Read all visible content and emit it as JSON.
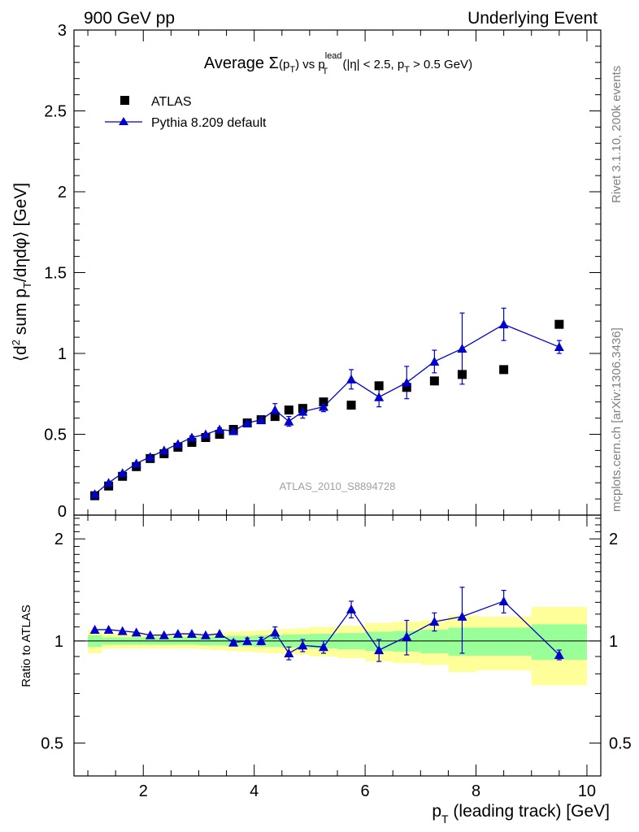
{
  "header": {
    "left": "900 GeV pp",
    "right": "Underlying Event",
    "side_rivet": "Rivet 3.1.10,  200k events",
    "side_mcplots": "mcplots.cern.ch [arXiv:1306.3436]",
    "watermark": "ATLAS_2010_S8894728"
  },
  "chart_data": [
    {
      "type": "scatter",
      "title_parts": {
        "a": "Average ",
        "sigma": "Σ",
        "b": "(p",
        "b_sub": "T",
        "c": ")  vs p",
        "c_sup": "lead",
        "c_sub": "T",
        "d": " (|η| < 2.5, p",
        "d_sub": "T",
        "e": " > 0.5 GeV)"
      },
      "ylabel_parts": {
        "a": "⟨d",
        "sup": "2",
        "b": " sum p",
        "sub": "T",
        "c": "/dηdφ⟩ [GeV]"
      },
      "ylim": [
        0,
        3
      ],
      "xlim": [
        0.75,
        10.25
      ],
      "yticks": [
        {
          "v": 0,
          "label": "0"
        },
        {
          "v": 0.5,
          "label": "0.5"
        },
        {
          "v": 1,
          "label": "1"
        },
        {
          "v": 1.5,
          "label": "1.5"
        },
        {
          "v": 2,
          "label": "2"
        },
        {
          "v": 2.5,
          "label": "2.5"
        },
        {
          "v": 3,
          "label": "3"
        }
      ],
      "legend": [
        {
          "name": "ATLAS",
          "marker": "square",
          "color": "#000000"
        },
        {
          "name": "Pythia 8.209 default",
          "marker": "triangle",
          "color": "#0000cc"
        }
      ],
      "series": [
        {
          "name": "ATLAS",
          "color": "#000000",
          "x": [
            1.125,
            1.375,
            1.625,
            1.875,
            2.125,
            2.375,
            2.625,
            2.875,
            3.125,
            3.375,
            3.625,
            3.875,
            4.125,
            4.375,
            4.625,
            4.875,
            5.25,
            5.75,
            6.25,
            6.75,
            7.25,
            7.75,
            8.5,
            9.5
          ],
          "y": [
            0.12,
            0.18,
            0.24,
            0.3,
            0.35,
            0.38,
            0.42,
            0.45,
            0.48,
            0.5,
            0.53,
            0.57,
            0.59,
            0.61,
            0.65,
            0.66,
            0.7,
            0.68,
            0.8,
            0.79,
            0.83,
            0.87,
            0.9,
            1.18
          ]
        },
        {
          "name": "Pythia 8.209 default",
          "color": "#0000cc",
          "x": [
            1.125,
            1.375,
            1.625,
            1.875,
            2.125,
            2.375,
            2.625,
            2.875,
            3.125,
            3.375,
            3.625,
            3.875,
            4.125,
            4.375,
            4.625,
            4.875,
            5.25,
            5.75,
            6.25,
            6.75,
            7.25,
            7.75,
            8.5,
            9.5
          ],
          "y": [
            0.13,
            0.2,
            0.26,
            0.32,
            0.36,
            0.4,
            0.44,
            0.48,
            0.5,
            0.53,
            0.52,
            0.57,
            0.59,
            0.65,
            0.58,
            0.64,
            0.67,
            0.84,
            0.73,
            0.82,
            0.95,
            1.03,
            1.18,
            1.04
          ],
          "yerr": [
            0,
            0,
            0,
            0,
            0,
            0,
            0,
            0.01,
            0,
            0.01,
            0,
            0.02,
            0.02,
            0.04,
            0.03,
            0.04,
            0.03,
            0.06,
            0.06,
            0.1,
            0.07,
            0.22,
            0.1,
            0.04
          ]
        }
      ]
    },
    {
      "type": "ratio",
      "ylabel": "Ratio to ATLAS",
      "ylim": [
        0.4,
        2.35
      ],
      "xlim": [
        0.75,
        10.25
      ],
      "log_y": true,
      "yticks": [
        {
          "v": 0.5,
          "label": "0.5"
        },
        {
          "v": 1,
          "label": "1"
        },
        {
          "v": 2,
          "label": "2"
        }
      ],
      "xticks": [
        {
          "v": 2,
          "label": "2"
        },
        {
          "v": 4,
          "label": "4"
        },
        {
          "v": 6,
          "label": "6"
        },
        {
          "v": 8,
          "label": "8"
        },
        {
          "v": 10,
          "label": "10"
        }
      ],
      "xlabel_parts": {
        "a": "p",
        "sub": "T",
        "b": " (leading track) [GeV]"
      },
      "bins": [
        {
          "lo": 1.0,
          "hi": 1.25,
          "y1": 0.92,
          "y1h": 1.08,
          "y2": 0.96,
          "y2h": 1.04
        },
        {
          "lo": 1.25,
          "hi": 1.5,
          "y1": 0.95,
          "y1h": 1.05,
          "y2": 0.975,
          "y2h": 1.025
        },
        {
          "lo": 1.5,
          "hi": 1.75,
          "y1": 0.95,
          "y1h": 1.05,
          "y2": 0.975,
          "y2h": 1.025
        },
        {
          "lo": 1.75,
          "hi": 2.0,
          "y1": 0.95,
          "y1h": 1.05,
          "y2": 0.975,
          "y2h": 1.025
        },
        {
          "lo": 2.0,
          "hi": 2.25,
          "y1": 0.95,
          "y1h": 1.05,
          "y2": 0.975,
          "y2h": 1.025
        },
        {
          "lo": 2.25,
          "hi": 2.5,
          "y1": 0.95,
          "y1h": 1.05,
          "y2": 0.975,
          "y2h": 1.025
        },
        {
          "lo": 2.5,
          "hi": 2.75,
          "y1": 0.95,
          "y1h": 1.05,
          "y2": 0.975,
          "y2h": 1.025
        },
        {
          "lo": 2.75,
          "hi": 3.0,
          "y1": 0.95,
          "y1h": 1.05,
          "y2": 0.975,
          "y2h": 1.025
        },
        {
          "lo": 3.0,
          "hi": 3.25,
          "y1": 0.945,
          "y1h": 1.055,
          "y2": 0.97,
          "y2h": 1.03
        },
        {
          "lo": 3.25,
          "hi": 3.5,
          "y1": 0.94,
          "y1h": 1.06,
          "y2": 0.97,
          "y2h": 1.03
        },
        {
          "lo": 3.5,
          "hi": 3.75,
          "y1": 0.935,
          "y1h": 1.065,
          "y2": 0.965,
          "y2h": 1.035
        },
        {
          "lo": 3.75,
          "hi": 4.0,
          "y1": 0.93,
          "y1h": 1.07,
          "y2": 0.965,
          "y2h": 1.035
        },
        {
          "lo": 4.0,
          "hi": 4.25,
          "y1": 0.925,
          "y1h": 1.075,
          "y2": 0.96,
          "y2h": 1.04
        },
        {
          "lo": 4.25,
          "hi": 4.5,
          "y1": 0.92,
          "y1h": 1.08,
          "y2": 0.96,
          "y2h": 1.04
        },
        {
          "lo": 4.5,
          "hi": 4.75,
          "y1": 0.915,
          "y1h": 1.085,
          "y2": 0.955,
          "y2h": 1.045
        },
        {
          "lo": 4.75,
          "hi": 5.0,
          "y1": 0.91,
          "y1h": 1.09,
          "y2": 0.955,
          "y2h": 1.045
        },
        {
          "lo": 5.0,
          "hi": 5.5,
          "y1": 0.9,
          "y1h": 1.1,
          "y2": 0.95,
          "y2h": 1.05
        },
        {
          "lo": 5.5,
          "hi": 6.0,
          "y1": 0.89,
          "y1h": 1.11,
          "y2": 0.945,
          "y2h": 1.055
        },
        {
          "lo": 6.0,
          "hi": 6.5,
          "y1": 0.87,
          "y1h": 1.13,
          "y2": 0.935,
          "y2h": 1.065
        },
        {
          "lo": 6.5,
          "hi": 7.0,
          "y1": 0.86,
          "y1h": 1.14,
          "y2": 0.93,
          "y2h": 1.07
        },
        {
          "lo": 7.0,
          "hi": 7.5,
          "y1": 0.85,
          "y1h": 1.15,
          "y2": 0.92,
          "y2h": 1.08
        },
        {
          "lo": 7.5,
          "hi": 8.0,
          "y1": 0.81,
          "y1h": 1.19,
          "y2": 0.905,
          "y2h": 1.095
        },
        {
          "lo": 8.0,
          "hi": 9.0,
          "y1": 0.82,
          "y1h": 1.18,
          "y2": 0.905,
          "y2h": 1.095
        },
        {
          "lo": 9.0,
          "hi": 10.0,
          "y1": 0.74,
          "y1h": 1.26,
          "y2": 0.88,
          "y2h": 1.12
        }
      ],
      "band_colors": {
        "outer": "#ffff99",
        "inner": "#99ff99"
      },
      "series": [
        {
          "name": "Pythia 8.209 default",
          "color": "#0000cc",
          "x": [
            1.125,
            1.375,
            1.625,
            1.875,
            2.125,
            2.375,
            2.625,
            2.875,
            3.125,
            3.375,
            3.625,
            3.875,
            4.125,
            4.375,
            4.625,
            4.875,
            5.25,
            5.75,
            6.25,
            6.75,
            7.25,
            7.75,
            8.5,
            9.5
          ],
          "y": [
            1.08,
            1.08,
            1.07,
            1.06,
            1.04,
            1.04,
            1.05,
            1.05,
            1.04,
            1.05,
            0.99,
            1.0,
            1.0,
            1.06,
            0.92,
            0.97,
            0.96,
            1.24,
            0.94,
            1.03,
            1.14,
            1.18,
            1.31,
            0.91
          ],
          "yerr": [
            0,
            0,
            0,
            0,
            0,
            0,
            0,
            0,
            0,
            0,
            0.015,
            0.02,
            0.025,
            0.04,
            0.04,
            0.04,
            0.04,
            0.07,
            0.07,
            0.12,
            0.07,
            0.26,
            0.1,
            0.03
          ]
        }
      ]
    }
  ]
}
